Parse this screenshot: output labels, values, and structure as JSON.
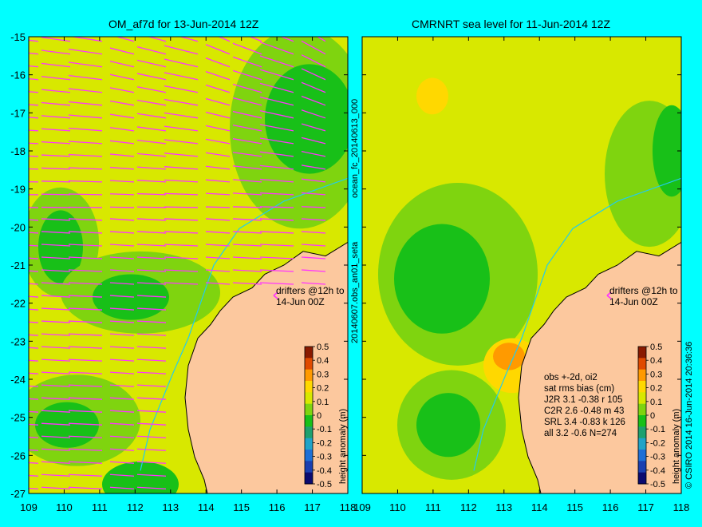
{
  "left_panel": {
    "title": "OM_af7d for 13-Jun-2014 12Z",
    "drifter_note_line1": "drifters @12h to",
    "drifter_note_line2": "14-Jun 00Z"
  },
  "right_panel": {
    "title": "CMRNRT sea level  for 11-Jun-2014 12Z",
    "drifter_note_line1": "drifters @12h to",
    "drifter_note_line2": "14-Jun 00Z",
    "stats": [
      "obs +-2d, oi2",
      "sat rms bias (cm)",
      "J2R   3.1 -0.38 r 105",
      "C2R   2.6 -0.48 m 43",
      "SRL   3.4 -0.83 k 126",
      "all   3.2 -0.6 N=274"
    ]
  },
  "axes": {
    "x_ticks": [
      "109",
      "110",
      "111",
      "112",
      "113",
      "114",
      "115",
      "116",
      "117",
      "118"
    ],
    "y_ticks": [
      "-15",
      "-16",
      "-17",
      "-18",
      "-19",
      "-20",
      "-21",
      "-22",
      "-23",
      "-24",
      "-25",
      "-26",
      "-27"
    ],
    "x_range": [
      109,
      118
    ],
    "y_range": [
      -27,
      -15
    ]
  },
  "colorbar": {
    "label": "height anomaly (m)",
    "ticks": [
      "0.5",
      "0.4",
      "0.3",
      "0.2",
      "0.1",
      "0",
      "-0.1",
      "-0.2",
      "-0.3",
      "-0.4",
      "-0.5"
    ],
    "colors": [
      "#0b0b70",
      "#1a3fb0",
      "#1d6fd6",
      "#1fa3c8",
      "#1ea06e",
      "#18c018",
      "#7fd40f",
      "#d8e800",
      "#ffd800",
      "#ff9a00",
      "#e04a00",
      "#8a1a00"
    ]
  },
  "side_labels": {
    "middle_top": "ocean_fc_20140613_000",
    "middle_bottom": "20140607.obs_an01_seta",
    "right_edge": "© CSIRO 2014  16-Jun-2014 20:36:36"
  },
  "colors": {
    "background": "#00ffff",
    "land": "#fcc89e",
    "vectors": "#ff33ff",
    "coast": "#000000",
    "isobath": "#22ccee"
  }
}
